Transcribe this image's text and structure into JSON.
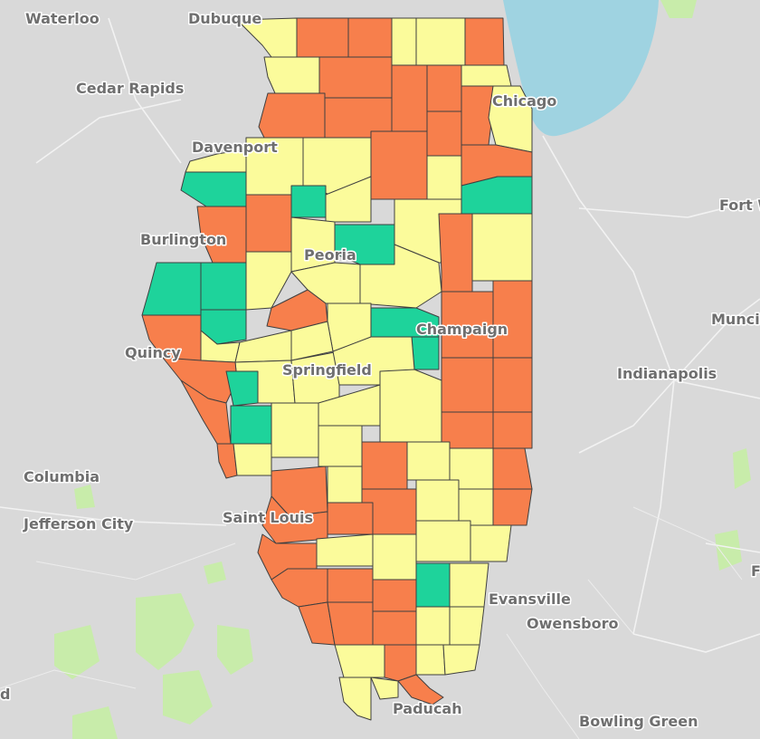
{
  "map": {
    "colors": {
      "background": "#d9d9d9",
      "water": "#9fd3e1",
      "park": "#c8ecaa",
      "orange": "#f77f4c",
      "yellow": "#fbfb9b",
      "green": "#1ed39b",
      "border": "#3f3f3f"
    },
    "legend_meaning": {
      "orange": "orange",
      "yellow": "yellow",
      "green": "green"
    },
    "cities": {
      "waterloo": "Waterloo",
      "dubuque": "Dubuque",
      "cedar_rapids": "Cedar Rapids",
      "chicago": "Chicago",
      "davenport": "Davenport",
      "fort_wayne": "Fort W",
      "burlington": "Burlington",
      "peoria": "Peoria",
      "muncie": "Munci",
      "quincy": "Quincy",
      "champaign": "Champaign",
      "springfield": "Springfield",
      "indianapolis": "Indianapolis",
      "columbia": "Columbia",
      "jefferson_city": "Jefferson City",
      "saint_louis": "Saint Louis",
      "evansville": "Evansville",
      "owensboro": "Owensboro",
      "paducah": "Paducah",
      "bowling_green": "Bowling Green",
      "edge_left": "d",
      "edge_right": "F"
    }
  }
}
